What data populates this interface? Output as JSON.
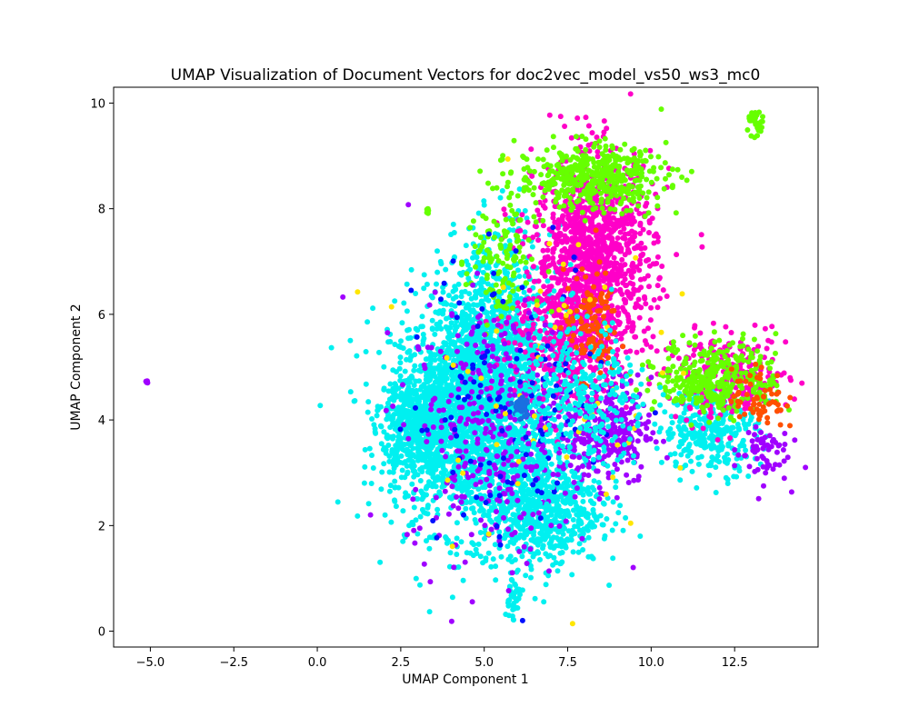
{
  "chart_data": {
    "type": "scatter",
    "title": "UMAP Visualization of Document Vectors for doc2vec_model_vs50_ws3_mc0",
    "xlabel": "UMAP Component 1",
    "ylabel": "UMAP Component 2",
    "xlim": [
      -6.1,
      15.0
    ],
    "ylim": [
      -0.3,
      10.3
    ],
    "x_ticks": [
      -5.0,
      -2.5,
      0.0,
      2.5,
      5.0,
      7.5,
      10.0,
      12.5
    ],
    "x_tick_labels": [
      "−5.0",
      "−2.5",
      "0.0",
      "2.5",
      "5.0",
      "7.5",
      "10.0",
      "12.5"
    ],
    "y_ticks": [
      0,
      2,
      4,
      6,
      8,
      10
    ],
    "y_tick_labels": [
      "0",
      "2",
      "4",
      "6",
      "8",
      "10"
    ],
    "grid": false,
    "legend": "none",
    "colors": [
      "#00f0f0",
      "#ff00c8",
      "#66ff00",
      "#a000ff",
      "#ff5000",
      "#0010ff",
      "#ffe600",
      "#1a6fe0"
    ],
    "clusters": [
      {
        "color": "#00f0f0",
        "cx": 4.6,
        "cy": 4.1,
        "sx": 1.2,
        "sy": 1.1,
        "n": 1800
      },
      {
        "color": "#00f0f0",
        "cx": 6.7,
        "cy": 2.4,
        "sx": 0.9,
        "sy": 0.6,
        "n": 700
      },
      {
        "color": "#00f0f0",
        "cx": 3.0,
        "cy": 3.9,
        "sx": 0.5,
        "sy": 0.5,
        "n": 500
      },
      {
        "color": "#00f0f0",
        "cx": 5.4,
        "cy": 5.6,
        "sx": 0.8,
        "sy": 1.0,
        "n": 700
      },
      {
        "color": "#00f0f0",
        "cx": 11.8,
        "cy": 3.8,
        "sx": 0.7,
        "sy": 0.4,
        "n": 300
      },
      {
        "color": "#00f0f0",
        "cx": 5.85,
        "cy": 0.6,
        "sx": 0.1,
        "sy": 0.25,
        "n": 40
      },
      {
        "color": "#ff00c8",
        "cx": 8.3,
        "cy": 7.2,
        "sx": 0.9,
        "sy": 0.9,
        "n": 1100
      },
      {
        "color": "#ff00c8",
        "cx": 12.3,
        "cy": 4.8,
        "sx": 0.9,
        "sy": 0.4,
        "n": 250
      },
      {
        "color": "#ff00c8",
        "cx": 7.5,
        "cy": 5.5,
        "sx": 0.9,
        "sy": 0.7,
        "n": 400
      },
      {
        "color": "#66ff00",
        "cx": 8.2,
        "cy": 8.6,
        "sx": 1.1,
        "sy": 0.3,
        "n": 450
      },
      {
        "color": "#66ff00",
        "cx": 12.0,
        "cy": 4.8,
        "sx": 0.9,
        "sy": 0.35,
        "n": 350
      },
      {
        "color": "#66ff00",
        "cx": 13.15,
        "cy": 9.6,
        "sx": 0.12,
        "sy": 0.12,
        "n": 30
      },
      {
        "color": "#66ff00",
        "cx": 3.3,
        "cy": 7.95,
        "sx": 0.03,
        "sy": 0.03,
        "n": 6
      },
      {
        "color": "#66ff00",
        "cx": 5.5,
        "cy": 7.0,
        "sx": 0.5,
        "sy": 0.7,
        "n": 120
      },
      {
        "color": "#a000ff",
        "cx": 8.8,
        "cy": 3.8,
        "sx": 0.6,
        "sy": 0.5,
        "n": 250
      },
      {
        "color": "#a000ff",
        "cx": 5.5,
        "cy": 3.8,
        "sx": 1.4,
        "sy": 1.2,
        "n": 400
      },
      {
        "color": "#a000ff",
        "cx": 13.3,
        "cy": 3.4,
        "sx": 0.4,
        "sy": 0.3,
        "n": 60
      },
      {
        "color": "#a000ff",
        "cx": -5.1,
        "cy": 4.72,
        "sx": 0.03,
        "sy": 0.02,
        "n": 5
      },
      {
        "color": "#ff5000",
        "cx": 8.2,
        "cy": 5.8,
        "sx": 0.4,
        "sy": 0.5,
        "n": 120
      },
      {
        "color": "#ff5000",
        "cx": 13.2,
        "cy": 4.4,
        "sx": 0.4,
        "sy": 0.3,
        "n": 60
      },
      {
        "color": "#0010ff",
        "cx": 6.0,
        "cy": 4.5,
        "sx": 1.6,
        "sy": 1.4,
        "n": 120
      },
      {
        "color": "#ffe600",
        "cx": 6.5,
        "cy": 5.0,
        "sx": 1.8,
        "sy": 1.6,
        "n": 60
      },
      {
        "color": "#1a6fe0",
        "cx": 6.1,
        "cy": 4.25,
        "sx": 0.12,
        "sy": 0.12,
        "n": 40
      },
      {
        "color": "#00f0f0",
        "cx": 8.0,
        "cy": 4.3,
        "sx": 1.0,
        "sy": 0.8,
        "n": 300
      }
    ]
  }
}
